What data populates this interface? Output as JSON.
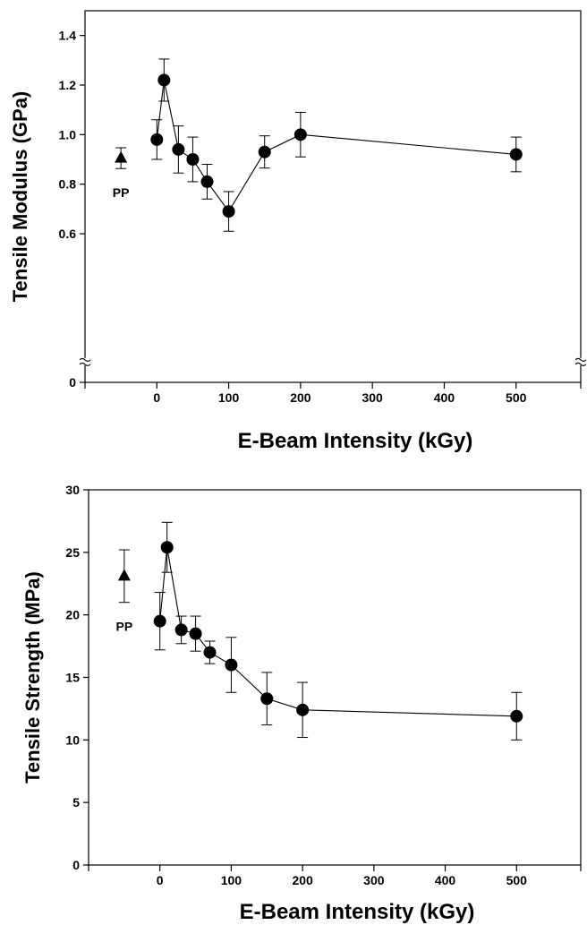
{
  "chart_data": [
    {
      "type": "scatter",
      "xlabel": "E-Beam Intensity (kGy)",
      "ylabel": "Tensile Modulus (GPa)",
      "xlim": [
        -100,
        590
      ],
      "ylim": [
        0,
        1.5
      ],
      "axis_break": true,
      "x_ticks": [
        0,
        100,
        200,
        300,
        400,
        500
      ],
      "y_ticks": [
        0,
        0.6,
        0.8,
        1.0,
        1.2,
        1.4
      ],
      "y_tick_labels": [
        "0",
        "0.6",
        "0.8",
        "1.0",
        "1.2",
        "1.4"
      ],
      "series": [
        {
          "marker": "circle",
          "x": [
            0,
            10,
            30,
            50,
            70,
            100,
            150,
            200,
            500
          ],
          "y": [
            0.98,
            1.22,
            0.94,
            0.9,
            0.81,
            0.69,
            0.93,
            1.0,
            0.92
          ],
          "error": [
            0.08,
            0.085,
            0.095,
            0.09,
            0.07,
            0.08,
            0.065,
            0.09,
            0.07
          ]
        }
      ],
      "reference": {
        "label": "PP",
        "marker": "triangle",
        "x": -50,
        "y": 0.905,
        "error": 0.042
      }
    },
    {
      "type": "scatter",
      "xlabel": "E-Beam Intensity (kGy)",
      "ylabel": "Tensile Strength (MPa)",
      "xlim": [
        -100,
        590
      ],
      "ylim": [
        0,
        30
      ],
      "axis_break": false,
      "x_ticks": [
        0,
        100,
        200,
        300,
        400,
        500
      ],
      "y_ticks": [
        0,
        5,
        10,
        15,
        20,
        25,
        30
      ],
      "y_tick_labels": [
        "0",
        "5",
        "10",
        "15",
        "20",
        "25",
        "30"
      ],
      "series": [
        {
          "marker": "circle",
          "x": [
            0,
            10,
            30,
            50,
            70,
            100,
            150,
            200,
            500
          ],
          "y": [
            19.5,
            25.4,
            18.8,
            18.5,
            17.0,
            16.0,
            13.3,
            12.4,
            11.9
          ],
          "error": [
            2.3,
            2.0,
            1.1,
            1.4,
            0.9,
            2.2,
            2.1,
            2.2,
            1.9
          ]
        }
      ],
      "reference": {
        "label": "PP",
        "marker": "triangle",
        "x": -50,
        "y": 23.1,
        "error": 2.1
      }
    }
  ]
}
